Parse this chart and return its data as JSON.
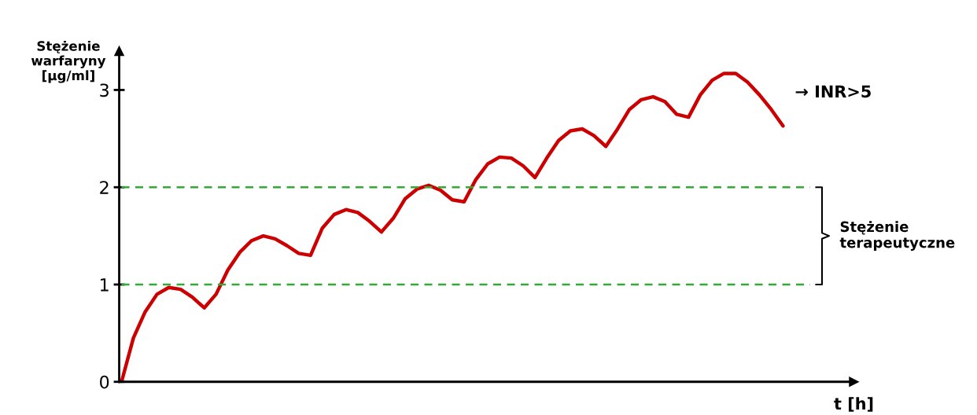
{
  "chart_data": {
    "type": "line",
    "ylabel": "Stężenie\nwarfaryny\n[µg/ml]",
    "xlabel": "t [h]",
    "categories": [
      null,
      null,
      null,
      null,
      null,
      null,
      null,
      null,
      null,
      null,
      null,
      null,
      null,
      null,
      null,
      null,
      null,
      null,
      null,
      null,
      null,
      null,
      null,
      null,
      null,
      null,
      null,
      null,
      null,
      null,
      null,
      null,
      null,
      null,
      null,
      null,
      null,
      null,
      null,
      null,
      null,
      null,
      null,
      null,
      null,
      null,
      null,
      null,
      null,
      null,
      null,
      null,
      null,
      null,
      null,
      null,
      null
    ],
    "series": [
      {
        "color": "#cc0000",
        "values": [
          0,
          0.45,
          0.72,
          0.9,
          0.97,
          0.95,
          0.87,
          0.76,
          0.9,
          1.15,
          1.33,
          1.45,
          1.5,
          1.47,
          1.4,
          1.32,
          1.3,
          1.58,
          1.72,
          1.77,
          1.74,
          1.65,
          1.54,
          1.68,
          1.88,
          1.98,
          2.02,
          1.97,
          1.87,
          1.85,
          2.08,
          2.24,
          2.31,
          2.3,
          2.22,
          2.1,
          2.3,
          2.48,
          2.58,
          2.6,
          2.53,
          2.42,
          2.6,
          2.8,
          2.9,
          2.93,
          2.88,
          2.75,
          2.72,
          2.95,
          3.1,
          3.17,
          3.17,
          3.08,
          2.95,
          2.8,
          2.63
        ]
      }
    ],
    "ylim": [
      0,
      3.4
    ],
    "yticks": [
      0,
      1,
      2,
      3
    ],
    "tick_labels": "y",
    "grid": false,
    "marker": "none",
    "line_style": "solid",
    "ref_lines": [
      {
        "axis": "y",
        "value": 1,
        "color": "#33aa33",
        "line_style": "dashed"
      },
      {
        "axis": "y",
        "value": 2,
        "color": "#33aa33",
        "line_style": "dashed"
      }
    ],
    "annotations": [
      "→ INR>5",
      "Stężenie\nterapeutyczne"
    ]
  }
}
